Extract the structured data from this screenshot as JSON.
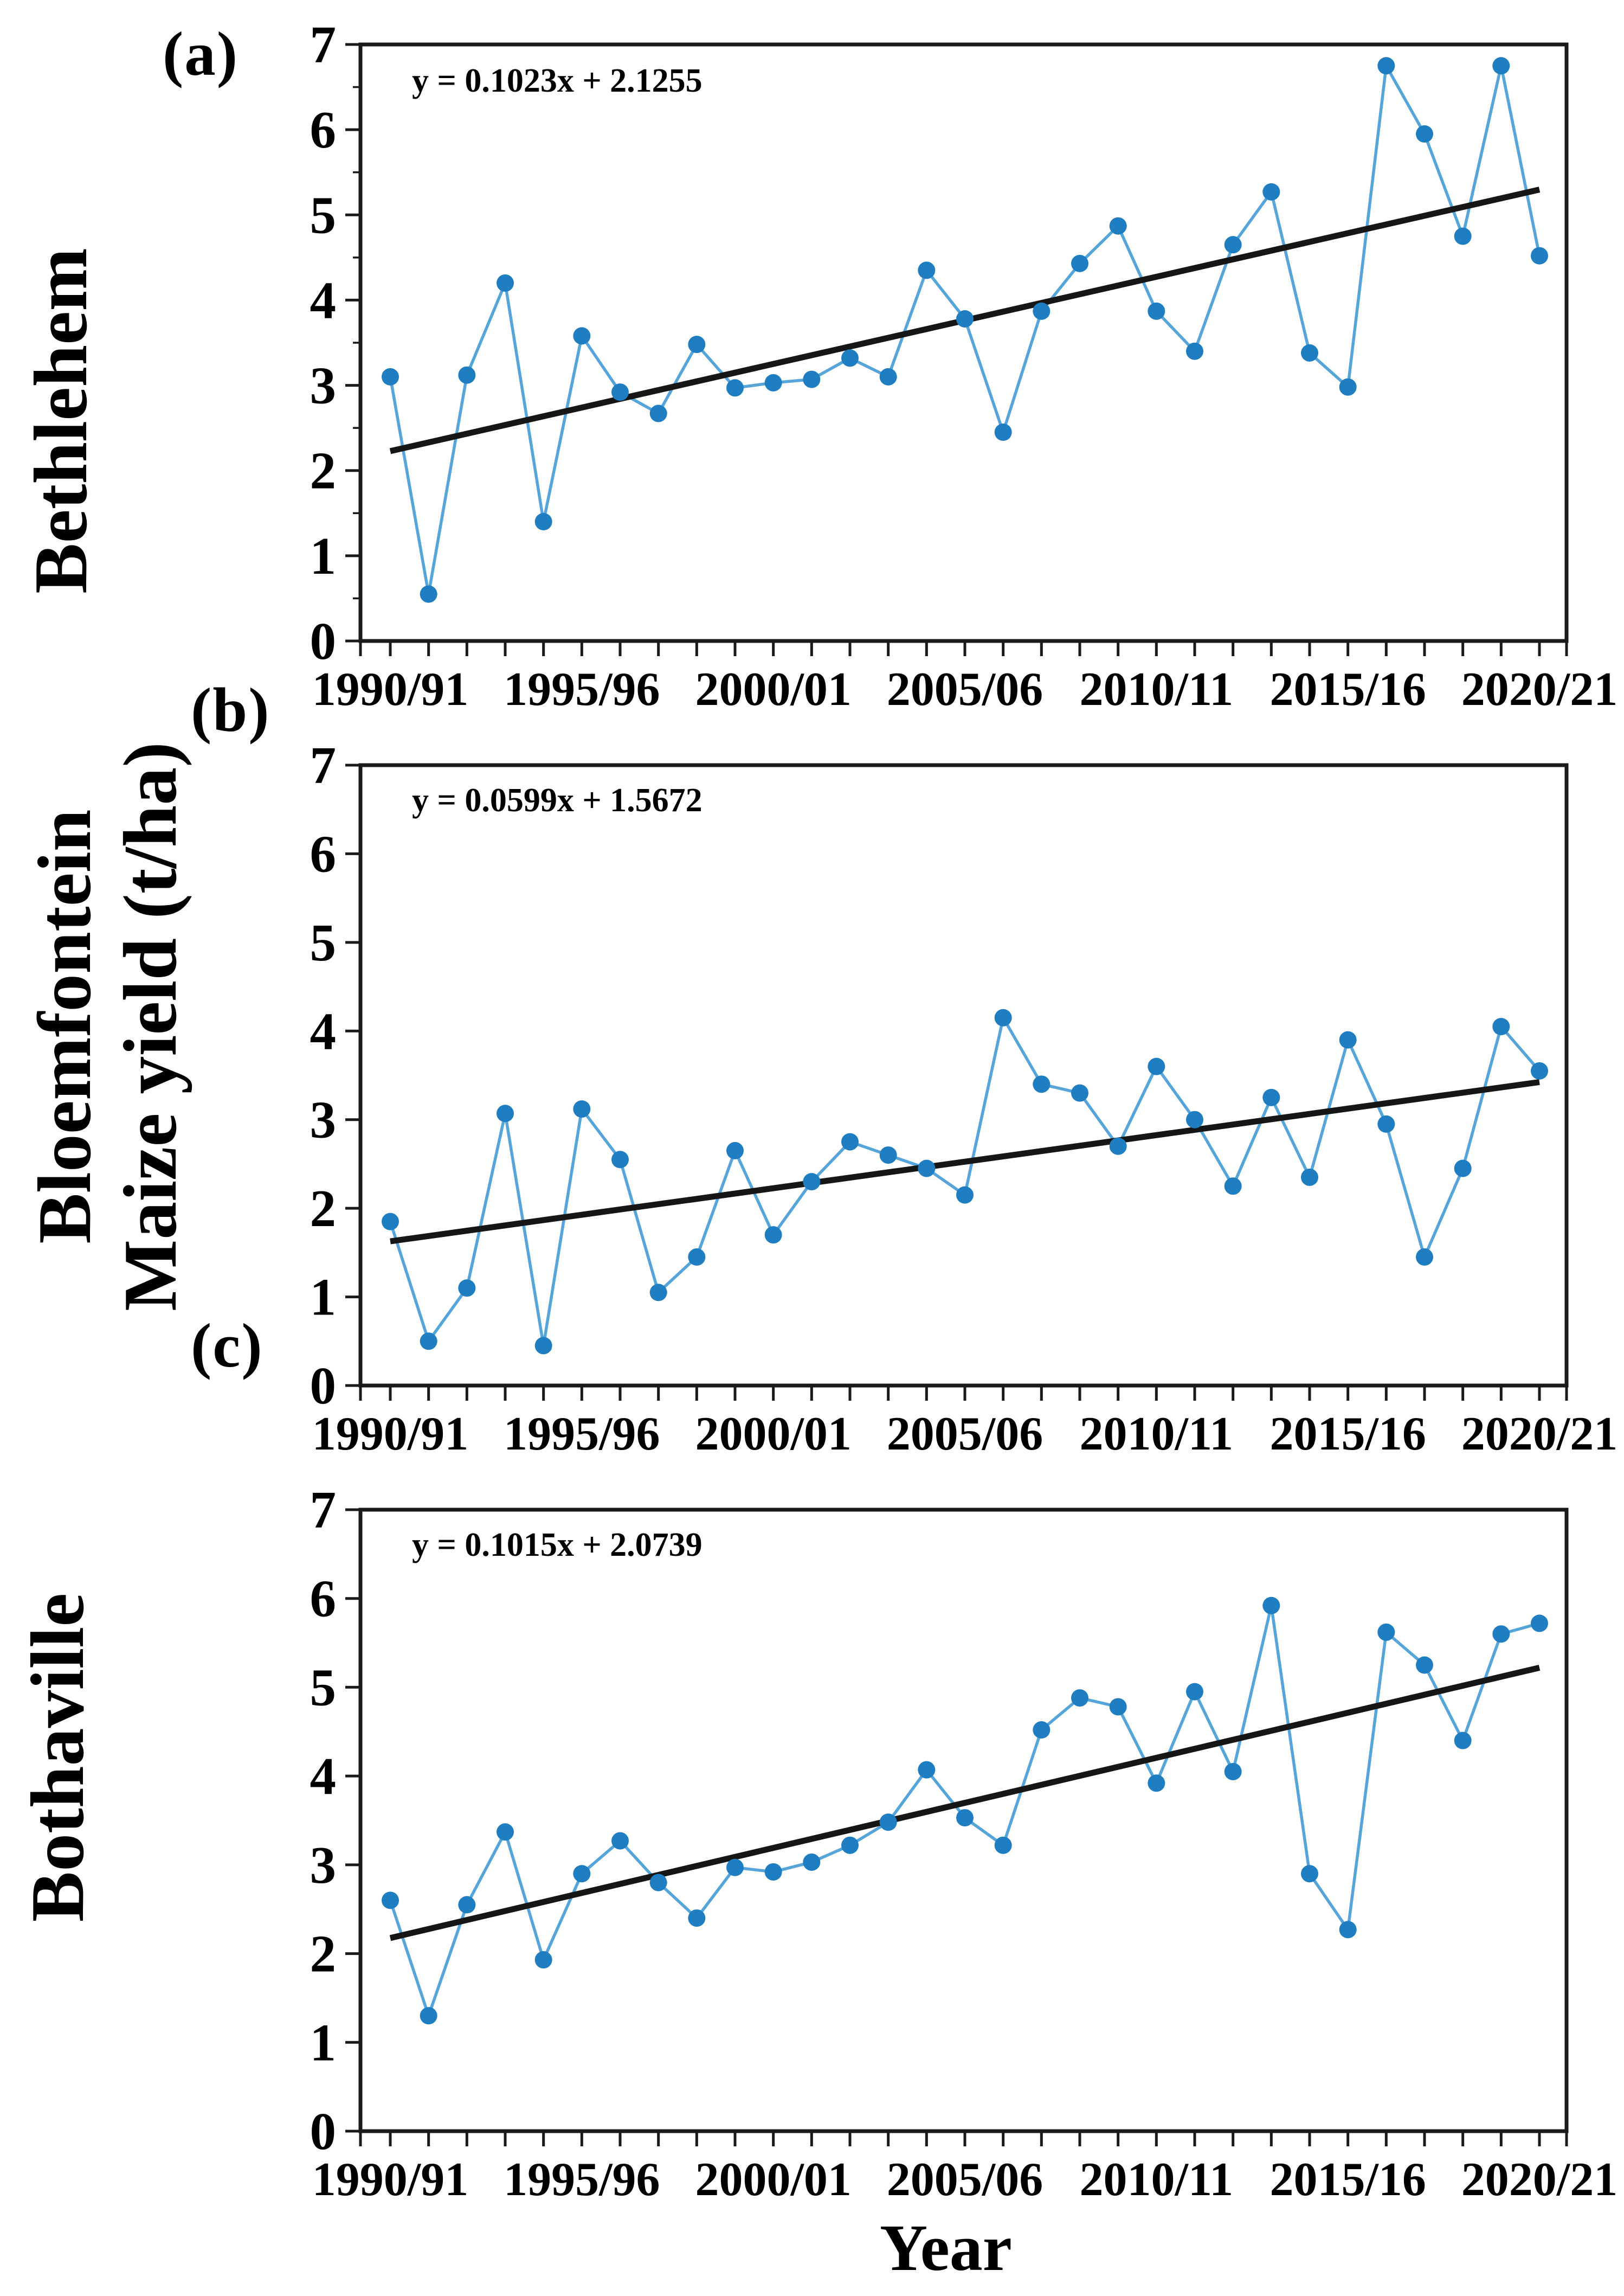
{
  "figure": {
    "x_axis_title": "Year",
    "y_axis_title": "Maize yield (t/ha)",
    "y_tick_labels": [
      "0",
      "1",
      "2",
      "3",
      "4",
      "5",
      "6",
      "7"
    ],
    "x_major_tick_labels": [
      "1990/91",
      "1995/96",
      "2000/01",
      "2005/06",
      "2010/11",
      "2015/16",
      "2020/21"
    ],
    "colors": {
      "marker": "#1F7EC2",
      "series_line": "#55A5DA",
      "trend_line": "#161616",
      "axis": "#1a1a1a",
      "text": "#000000"
    }
  },
  "chart_data": [
    {
      "type": "line",
      "panel_label": "(a)",
      "station": "Bethlehem",
      "equation_label": "y = 0.1023x + 2.1255",
      "trend": {
        "slope": 0.1023,
        "intercept": 2.1255
      },
      "xlabel": "Year",
      "ylabel": "Maize yield (t/ha)",
      "ylim": [
        0,
        7
      ],
      "grid": false,
      "legend": false,
      "x_categories": [
        "1990/91",
        "1991/92",
        "1992/93",
        "1993/94",
        "1994/95",
        "1995/96",
        "1996/97",
        "1997/98",
        "1998/99",
        "1999/00",
        "2000/01",
        "2001/02",
        "2002/03",
        "2003/04",
        "2004/05",
        "2005/06",
        "2006/07",
        "2007/08",
        "2008/09",
        "2009/10",
        "2010/11",
        "2011/12",
        "2012/13",
        "2013/14",
        "2014/15",
        "2015/16",
        "2016/17",
        "2017/18",
        "2018/19",
        "2019/20",
        "2020/21"
      ],
      "values": [
        3.1,
        0.55,
        3.12,
        4.2,
        1.4,
        3.58,
        2.92,
        2.67,
        3.48,
        2.97,
        3.03,
        3.07,
        3.32,
        3.1,
        4.35,
        3.78,
        2.45,
        3.87,
        4.43,
        4.87,
        3.87,
        3.4,
        4.65,
        5.27,
        3.38,
        2.98,
        6.75,
        5.95,
        4.75,
        6.75,
        4.52
      ]
    },
    {
      "type": "line",
      "panel_label": "(b)",
      "station": "Bloemfontein",
      "equation_label": "y = 0.0599x + 1.5672",
      "trend": {
        "slope": 0.0599,
        "intercept": 1.5672
      },
      "xlabel": "Year",
      "ylabel": "Maize yield (t/ha)",
      "ylim": [
        0,
        7
      ],
      "grid": false,
      "legend": false,
      "x_categories": [
        "1990/91",
        "1991/92",
        "1992/93",
        "1993/94",
        "1994/95",
        "1995/96",
        "1996/97",
        "1997/98",
        "1998/99",
        "1999/00",
        "2000/01",
        "2001/02",
        "2002/03",
        "2003/04",
        "2004/05",
        "2005/06",
        "2006/07",
        "2007/08",
        "2008/09",
        "2009/10",
        "2010/11",
        "2011/12",
        "2012/13",
        "2013/14",
        "2014/15",
        "2015/16",
        "2016/17",
        "2017/18",
        "2018/19",
        "2019/20",
        "2020/21"
      ],
      "values": [
        1.85,
        0.5,
        1.1,
        3.07,
        0.45,
        3.12,
        2.55,
        1.05,
        1.45,
        2.65,
        1.7,
        2.3,
        2.75,
        2.6,
        2.45,
        2.15,
        4.15,
        3.4,
        3.3,
        2.7,
        3.6,
        3.0,
        2.25,
        3.25,
        2.35,
        3.9,
        2.95,
        1.45,
        2.45,
        4.05,
        3.55
      ]
    },
    {
      "type": "line",
      "panel_label": "(c)",
      "station": "Bothaville",
      "equation_label": "y = 0.1015x + 2.0739",
      "trend": {
        "slope": 0.1015,
        "intercept": 2.0739
      },
      "xlabel": "Year",
      "ylabel": "Maize yield (t/ha)",
      "ylim": [
        0,
        7
      ],
      "grid": false,
      "legend": false,
      "x_categories": [
        "1990/91",
        "1991/92",
        "1992/93",
        "1993/94",
        "1994/95",
        "1995/96",
        "1996/97",
        "1997/98",
        "1998/99",
        "1999/00",
        "2000/01",
        "2001/02",
        "2002/03",
        "2003/04",
        "2004/05",
        "2005/06",
        "2006/07",
        "2007/08",
        "2008/09",
        "2009/10",
        "2010/11",
        "2011/12",
        "2012/13",
        "2013/14",
        "2014/15",
        "2015/16",
        "2016/17",
        "2017/18",
        "2018/19",
        "2019/20",
        "2020/21"
      ],
      "values": [
        2.6,
        1.3,
        2.55,
        3.37,
        1.93,
        2.9,
        3.27,
        2.8,
        2.4,
        2.97,
        2.92,
        3.03,
        3.22,
        3.48,
        4.07,
        3.53,
        3.22,
        4.52,
        4.88,
        4.78,
        3.92,
        4.95,
        4.05,
        5.92,
        2.9,
        2.27,
        5.62,
        5.25,
        4.4,
        5.6,
        5.72
      ]
    }
  ]
}
